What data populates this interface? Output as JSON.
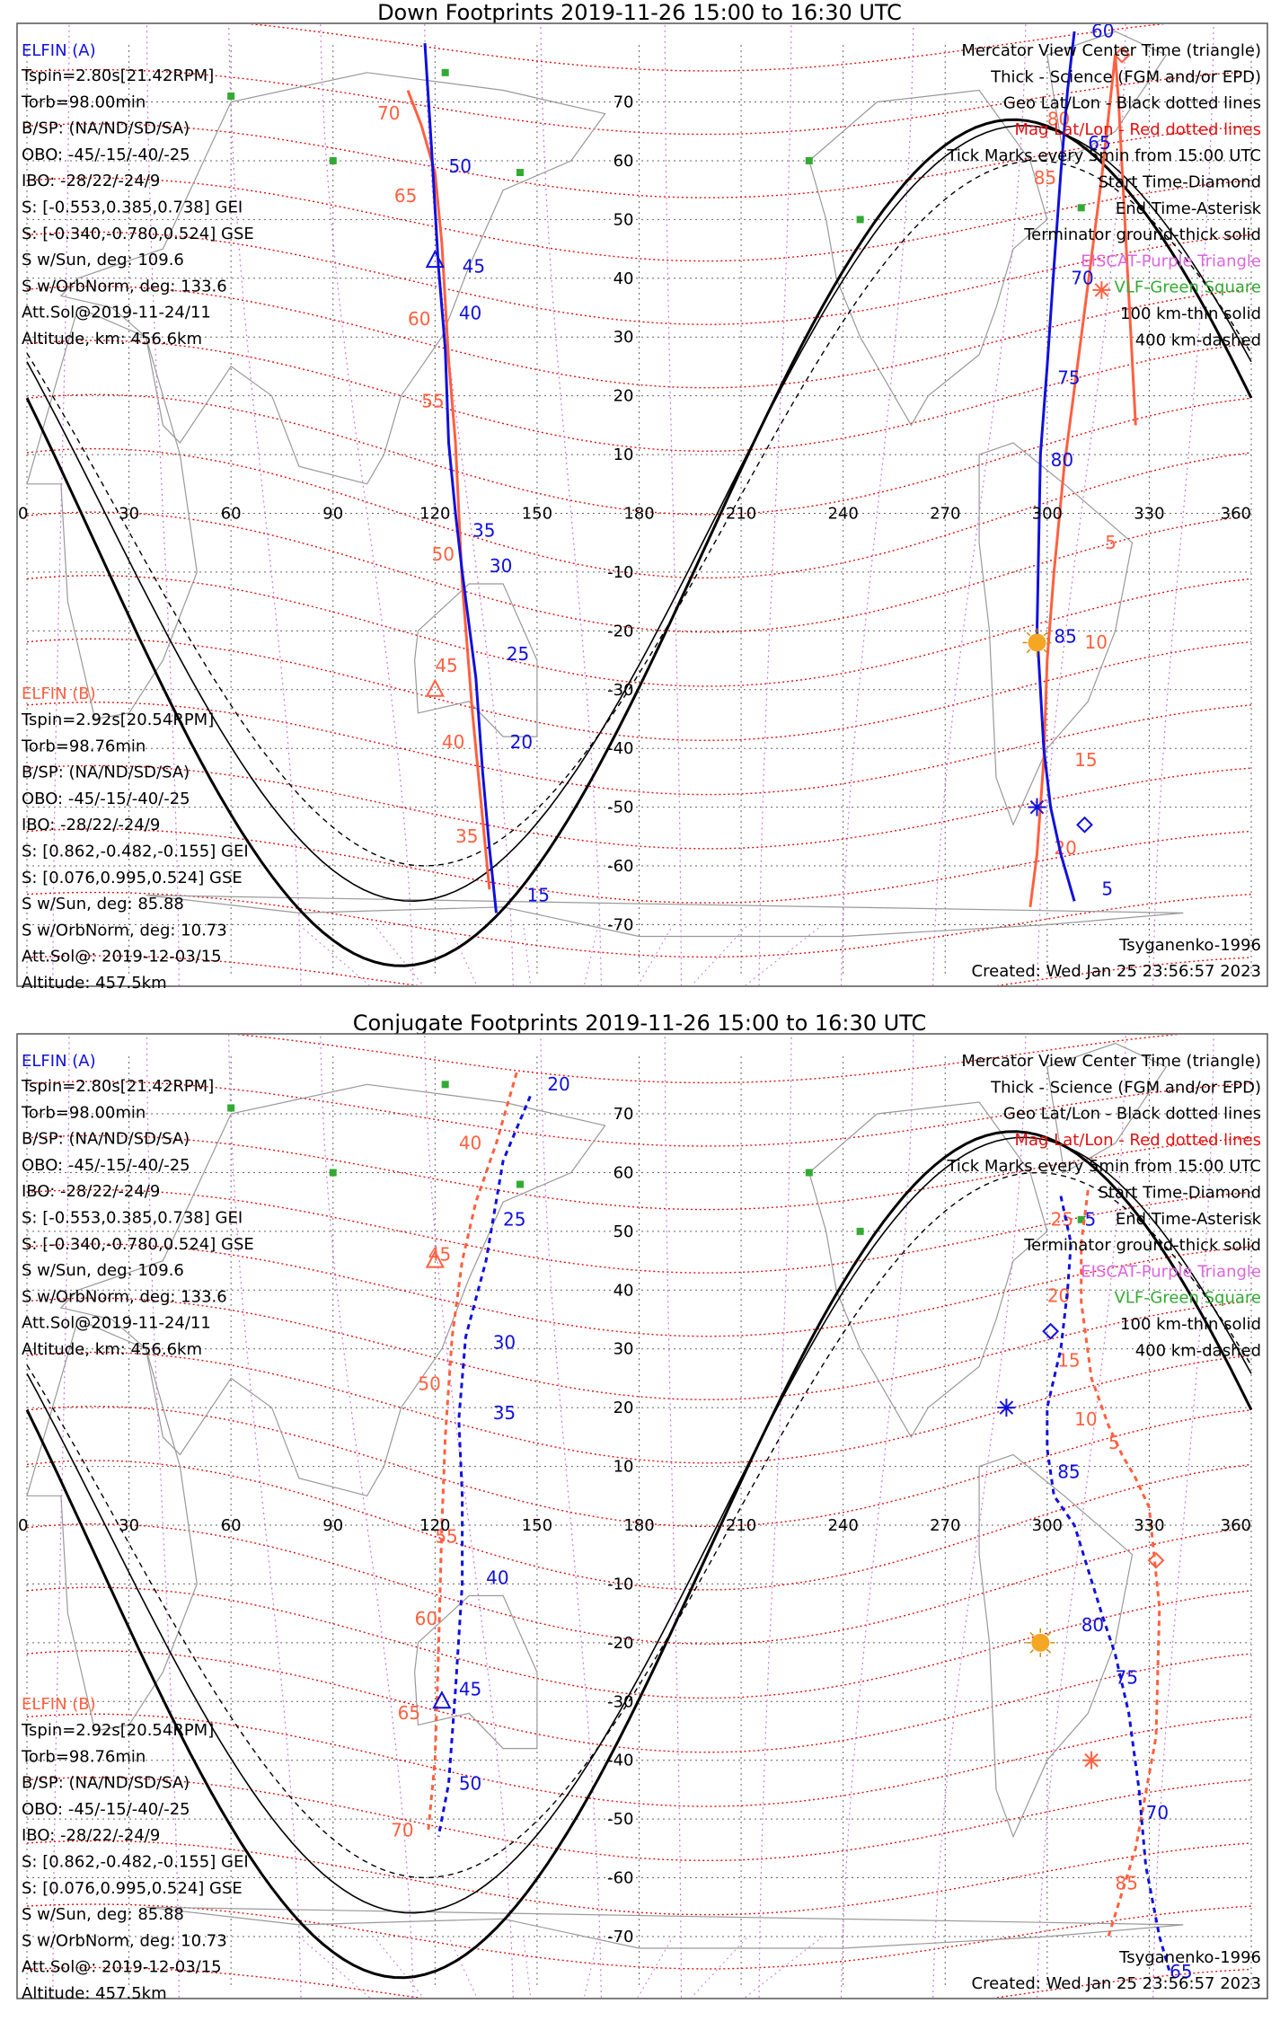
{
  "chart_data": [
    {
      "type": "line",
      "title": "Down Footprints 2019-11-26 15:00 to 16:30 UTC",
      "xlim": [
        0,
        360
      ],
      "ylim": [
        -90,
        90
      ],
      "x_ticks": [
        0,
        30,
        60,
        90,
        120,
        150,
        180,
        210,
        240,
        270,
        300,
        330,
        360
      ],
      "y_ticks": [
        70,
        60,
        50,
        40,
        30,
        20,
        10,
        -10,
        -20,
        -30,
        -40,
        -50,
        -60,
        -70
      ],
      "grid": true,
      "panel_a": {
        "title": "ELFIN (A)",
        "lines": [
          "Tspin=2.80s[21.42RPM]",
          "Torb=98.00min",
          "B/SP: (NA/ND/SD/SA)",
          "OBO: -45/-15/-40/-25",
          "IBO: -28/22/-24/9",
          "S: [-0.553,0.385,0.738] GEI",
          "S: [-0.340,-0.780,0.524] GSE",
          "S w/Sun, deg: 109.6",
          "S w/OrbNorm, deg: 133.6",
          "Att.Sol@2019-11-24/11",
          "Altitude, km: 456.6km"
        ]
      },
      "panel_b": {
        "title": "ELFIN (B)",
        "lines": [
          "Tspin=2.92s[20.54RPM]",
          "Torb=98.76min",
          "B/SP: (NA/ND/SD/SA)",
          "OBO: -45/-15/-40/-25",
          "IBO: -28/22/-24/9",
          "S: [0.862,-0.482,-0.155] GEI",
          "S: [0.076,0.995,0.524] GSE",
          "S w/Sun, deg: 85.88",
          "S w/OrbNorm, deg: 10.73",
          "Att.Sol@: 2019-12-03/15",
          "Altitude: 457.5km"
        ]
      },
      "legend": [
        {
          "text": "Mercator View Center Time (triangle)",
          "color": "#000000"
        },
        {
          "text": "Thick - Science (FGM and/or EPD)",
          "color": "#000000"
        },
        {
          "text": "Geo Lat/Lon - Black dotted lines",
          "color": "#000000"
        },
        {
          "text": "Mag Lat/Lon - Red dotted lines",
          "color": "#e01010"
        },
        {
          "text": "Tick Marks every 5min from 15:00 UTC",
          "color": "#000000"
        },
        {
          "text": "Start Time-Diamond",
          "color": "#000000"
        },
        {
          "text": "End Time-Asterisk",
          "color": "#000000"
        },
        {
          "text": "Terminator ground-thick solid",
          "color": "#000000"
        },
        {
          "text": "EISCAT-Purple Triangle",
          "color": "#dd66dd"
        },
        {
          "text": "VLF-Green Square",
          "color": "#33aa33"
        },
        {
          "text": "100 km-thin solid",
          "color": "#000000"
        },
        {
          "text": "400 km-dashed",
          "color": "#000000"
        }
      ],
      "credit": "Tsyganenko-1996",
      "created": "Created: Wed Jan 25 23:56:57 2023",
      "series": [
        {
          "name": "ELFIN (B)",
          "color": "#ff6040",
          "dashed": false,
          "x": [
            112,
            116,
            120,
            122,
            124,
            126,
            128,
            131,
            134,
            136
          ],
          "y": [
            72,
            66,
            58,
            46,
            26,
            12,
            -12,
            -34,
            -52,
            -64
          ],
          "labels": [
            {
              "t": "70",
              "x": 103,
              "y": 67
            },
            {
              "t": "65",
              "x": 108,
              "y": 53
            },
            {
              "t": "60",
              "x": 112,
              "y": 32
            },
            {
              "t": "55",
              "x": 116,
              "y": 18
            },
            {
              "t": "50",
              "x": 119,
              "y": -8
            },
            {
              "t": "45",
              "x": 120,
              "y": -27
            },
            {
              "t": "40",
              "x": 122,
              "y": -40
            },
            {
              "t": "35",
              "x": 126,
              "y": -56
            }
          ]
        },
        {
          "name": "ELFIN (B) pass 2",
          "color": "#ff6040",
          "dashed": false,
          "x": [
            295,
            297,
            299,
            300,
            302,
            305,
            310,
            316,
            320,
            321,
            326
          ],
          "y": [
            -67,
            -58,
            -42,
            -25,
            -10,
            8,
            30,
            57,
            78,
            70,
            15
          ],
          "labels": [
            {
              "t": "20",
              "x": 302,
              "y": -58
            },
            {
              "t": "15",
              "x": 308,
              "y": -43
            },
            {
              "t": "10",
              "x": 311,
              "y": -23
            },
            {
              "t": "5",
              "x": 317,
              "y": -6
            },
            {
              "t": "85",
              "x": 296,
              "y": 56
            },
            {
              "t": "80",
              "x": 300,
              "y": 66
            }
          ]
        },
        {
          "name": "ELFIN (A)",
          "color": "#1010dd",
          "dashed": false,
          "x": [
            117,
            119,
            121,
            123,
            124,
            126,
            128,
            132,
            134,
            136,
            138
          ],
          "y": [
            80,
            62,
            42,
            28,
            12,
            0,
            -10,
            -28,
            -44,
            -57,
            -68
          ],
          "labels": [
            {
              "t": "50",
              "x": 124,
              "y": 58
            },
            {
              "t": "45",
              "x": 128,
              "y": 41
            },
            {
              "t": "40",
              "x": 127,
              "y": 33
            },
            {
              "t": "35",
              "x": 131,
              "y": -4
            },
            {
              "t": "30",
              "x": 136,
              "y": -10
            },
            {
              "t": "25",
              "x": 141,
              "y": -25
            },
            {
              "t": "20",
              "x": 142,
              "y": -40
            },
            {
              "t": "15",
              "x": 147,
              "y": -66
            }
          ]
        },
        {
          "name": "ELFIN (A) pass 2",
          "color": "#1010dd",
          "dashed": false,
          "x": [
            308,
            306,
            304,
            302,
            300,
            298,
            297,
            298,
            299,
            301,
            304,
            308
          ],
          "y": [
            82,
            72,
            58,
            42,
            25,
            10,
            -20,
            -30,
            -40,
            -50,
            -58,
            -66
          ],
          "labels": [
            {
              "t": "60",
              "x": 313,
              "y": 81
            },
            {
              "t": "65",
              "x": 312,
              "y": 62
            },
            {
              "t": "70",
              "x": 307,
              "y": 39
            },
            {
              "t": "75",
              "x": 303,
              "y": 22
            },
            {
              "t": "80",
              "x": 301,
              "y": 8
            },
            {
              "t": "85",
              "x": 302,
              "y": -22
            },
            {
              "t": "5",
              "x": 316,
              "y": -65
            }
          ]
        }
      ]
    },
    {
      "type": "line",
      "title": "Conjugate Footprints 2019-11-26 15:00 to 16:30 UTC",
      "xlim": [
        0,
        360
      ],
      "ylim": [
        -90,
        90
      ],
      "x_ticks": [
        0,
        30,
        60,
        90,
        120,
        150,
        180,
        210,
        240,
        270,
        300,
        330,
        360
      ],
      "y_ticks": [
        70,
        60,
        50,
        40,
        30,
        20,
        10,
        -10,
        -20,
        -30,
        -40,
        -50,
        -60,
        -70
      ],
      "grid": true,
      "panel_a": {
        "title": "ELFIN (A)",
        "lines": [
          "Tspin=2.80s[21.42RPM]",
          "Torb=98.00min",
          "B/SP: (NA/ND/SD/SA)",
          "OBO: -45/-15/-40/-25",
          "IBO: -28/22/-24/9",
          "S: [-0.553,0.385,0.738] GEI",
          "S: [-0.340,-0.780,0.524] GSE",
          "S w/Sun, deg: 109.6",
          "S w/OrbNorm, deg: 133.6",
          "Att.Sol@2019-11-24/11",
          "Altitude, km: 456.6km"
        ]
      },
      "panel_b": {
        "title": "ELFIN (B)",
        "lines": [
          "Tspin=2.92s[20.54RPM]",
          "Torb=98.76min",
          "B/SP: (NA/ND/SD/SA)",
          "OBO: -45/-15/-40/-25",
          "IBO: -28/22/-24/9",
          "S: [0.862,-0.482,-0.155] GEI",
          "S: [0.076,0.995,0.524] GSE",
          "S w/Sun, deg: 85.88",
          "S w/OrbNorm, deg: 10.73",
          "Att.Sol@: 2019-12-03/15",
          "Altitude: 457.5km"
        ]
      },
      "legend": [
        {
          "text": "Mercator View Center Time (triangle)",
          "color": "#000000"
        },
        {
          "text": "Thick - Science (FGM and/or EPD)",
          "color": "#000000"
        },
        {
          "text": "Geo Lat/Lon - Black dotted lines",
          "color": "#000000"
        },
        {
          "text": "Mag Lat/Lon - Red dotted lines",
          "color": "#e01010"
        },
        {
          "text": "Tick Marks every 5min from 15:00 UTC",
          "color": "#000000"
        },
        {
          "text": "Start Time-Diamond",
          "color": "#000000"
        },
        {
          "text": "End Time-Asterisk",
          "color": "#000000"
        },
        {
          "text": "Terminator ground-thick solid",
          "color": "#000000"
        },
        {
          "text": "EISCAT-Purple Triangle",
          "color": "#dd66dd"
        },
        {
          "text": "VLF-Green Square",
          "color": "#33aa33"
        },
        {
          "text": "100 km-thin solid",
          "color": "#000000"
        },
        {
          "text": "400 km-dashed",
          "color": "#000000"
        }
      ],
      "credit": "Tsyganenko-1996",
      "created": "Created: Wed Jan 25 23:56:57 2023",
      "series": [
        {
          "name": "ELFIN (B)",
          "color": "#ff6040",
          "dashed": true,
          "x": [
            144,
            138,
            132,
            128,
            125,
            123,
            122,
            121,
            120,
            118
          ],
          "y": [
            77,
            65,
            55,
            45,
            32,
            15,
            0,
            -22,
            -40,
            -52
          ],
          "labels": [
            {
              "t": "40",
              "x": 127,
              "y": 64
            },
            {
              "t": "45",
              "x": 118,
              "y": 45
            },
            {
              "t": "50",
              "x": 115,
              "y": 23
            },
            {
              "t": "55",
              "x": 120,
              "y": -3
            },
            {
              "t": "60",
              "x": 114,
              "y": -17
            },
            {
              "t": "65",
              "x": 109,
              "y": -33
            },
            {
              "t": "70",
              "x": 107,
              "y": -53
            }
          ]
        },
        {
          "name": "ELFIN (B) pass 2",
          "color": "#ff6040",
          "dashed": true,
          "x": [
            312,
            310,
            310,
            313,
            318,
            322,
            326,
            330,
            333,
            332,
            326,
            318
          ],
          "y": [
            57,
            48,
            38,
            25,
            17,
            12,
            8,
            3,
            -14,
            -36,
            -55,
            -70
          ],
          "labels": [
            {
              "t": "25",
              "x": 301,
              "y": 51
            },
            {
              "t": "20",
              "x": 300,
              "y": 38
            },
            {
              "t": "15",
              "x": 303,
              "y": 27
            },
            {
              "t": "10",
              "x": 308,
              "y": 17
            },
            {
              "t": "5",
              "x": 318,
              "y": 13
            },
            {
              "t": "85",
              "x": 320,
              "y": -62
            }
          ]
        },
        {
          "name": "ELFIN (A)",
          "color": "#1010dd",
          "dashed": true,
          "x": [
            148,
            140,
            135,
            129,
            127,
            128,
            128,
            126,
            124,
            121
          ],
          "y": [
            73,
            62,
            45,
            32,
            18,
            5,
            -10,
            -28,
            -44,
            -53
          ],
          "labels": [
            {
              "t": "20",
              "x": 153,
              "y": 74
            },
            {
              "t": "25",
              "x": 140,
              "y": 51
            },
            {
              "t": "30",
              "x": 137,
              "y": 30
            },
            {
              "t": "35",
              "x": 137,
              "y": 18
            },
            {
              "t": "40",
              "x": 135,
              "y": -10
            },
            {
              "t": "45",
              "x": 127,
              "y": -29
            },
            {
              "t": "50",
              "x": 127,
              "y": -45
            }
          ]
        },
        {
          "name": "ELFIN (A) pass 2",
          "color": "#1010dd",
          "dashed": true,
          "x": [
            304,
            307,
            306,
            304,
            300,
            300,
            302,
            308,
            316,
            320,
            324,
            327,
            329,
            333,
            336
          ],
          "y": [
            56,
            48,
            40,
            30,
            20,
            13,
            5,
            0,
            -15,
            -22,
            -32,
            -45,
            -58,
            -70,
            -76
          ],
          "labels": [
            {
              "t": "5",
              "x": 311,
              "y": 51
            },
            {
              "t": "85",
              "x": 303,
              "y": 8
            },
            {
              "t": "80",
              "x": 310,
              "y": -18
            },
            {
              "t": "75",
              "x": 320,
              "y": -27
            },
            {
              "t": "70",
              "x": 329,
              "y": -50
            },
            {
              "t": "65",
              "x": 336,
              "y": -77
            }
          ]
        }
      ]
    }
  ]
}
